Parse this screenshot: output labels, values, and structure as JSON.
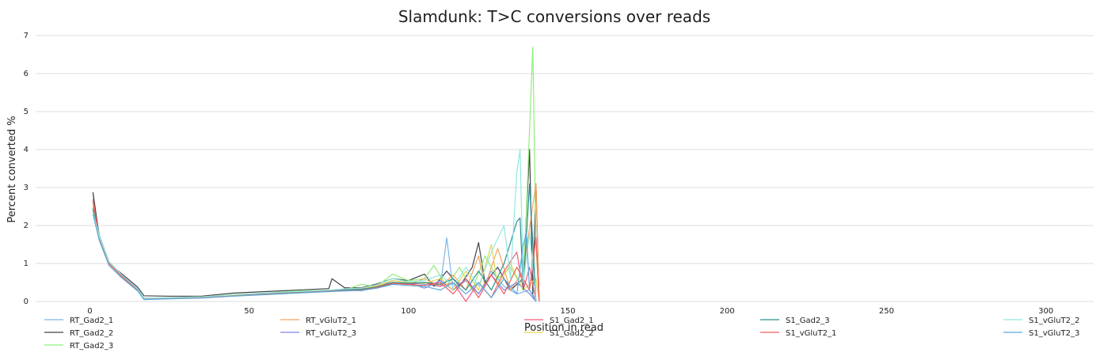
{
  "chart_data": {
    "type": "line",
    "title": "Slamdunk: T>C conversions over reads",
    "xlabel": "Position in read",
    "ylabel": "Percent converted %",
    "xlim": [
      -17,
      315
    ],
    "ylim": [
      0,
      7
    ],
    "xticks": [
      0,
      50,
      100,
      150,
      200,
      250,
      300
    ],
    "yticks": [
      0,
      1,
      2,
      3,
      4,
      5,
      6,
      7
    ],
    "grid": "horizontal",
    "legend_position": "bottom",
    "series": [
      {
        "name": "RT_Gad2_1",
        "color": "#7cb5ec",
        "values": [
          [
            1,
            2.82
          ],
          [
            3,
            1.74
          ],
          [
            6,
            1.05
          ],
          [
            10,
            0.7
          ],
          [
            15,
            0.34
          ],
          [
            17,
            0.09
          ],
          [
            25,
            0.1
          ],
          [
            35,
            0.1
          ],
          [
            45,
            0.16
          ],
          [
            55,
            0.2
          ],
          [
            65,
            0.24
          ],
          [
            75,
            0.26
          ],
          [
            80,
            0.34
          ],
          [
            85,
            0.28
          ],
          [
            90,
            0.36
          ],
          [
            95,
            0.55
          ],
          [
            100,
            0.5
          ],
          [
            105,
            0.45
          ],
          [
            110,
            0.4
          ],
          [
            112,
            1.68
          ],
          [
            114,
            0.3
          ],
          [
            118,
            0.55
          ],
          [
            122,
            0.2
          ],
          [
            126,
            0.8
          ],
          [
            130,
            0.4
          ],
          [
            134,
            0.2
          ],
          [
            138,
            0.3
          ],
          [
            140,
            0.05
          ]
        ]
      },
      {
        "name": "RT_Gad2_2",
        "color": "#434348",
        "values": [
          [
            1,
            2.88
          ],
          [
            3,
            1.66
          ],
          [
            6,
            1.0
          ],
          [
            10,
            0.73
          ],
          [
            15,
            0.38
          ],
          [
            17,
            0.15
          ],
          [
            25,
            0.14
          ],
          [
            35,
            0.14
          ],
          [
            45,
            0.22
          ],
          [
            55,
            0.26
          ],
          [
            65,
            0.3
          ],
          [
            75,
            0.34
          ],
          [
            76,
            0.6
          ],
          [
            80,
            0.36
          ],
          [
            85,
            0.36
          ],
          [
            90,
            0.46
          ],
          [
            95,
            0.6
          ],
          [
            100,
            0.55
          ],
          [
            105,
            0.72
          ],
          [
            108,
            0.4
          ],
          [
            112,
            0.8
          ],
          [
            116,
            0.4
          ],
          [
            120,
            0.9
          ],
          [
            122,
            1.55
          ],
          [
            124,
            0.5
          ],
          [
            128,
            0.9
          ],
          [
            132,
            0.3
          ],
          [
            136,
            0.6
          ],
          [
            138,
            4.0
          ],
          [
            139,
            0.2
          ],
          [
            140,
            3.1
          ],
          [
            141,
            0.0
          ]
        ]
      },
      {
        "name": "RT_Gad2_3",
        "color": "#90ed7d",
        "values": [
          [
            1,
            2.6
          ],
          [
            3,
            1.7
          ],
          [
            6,
            1.02
          ],
          [
            10,
            0.68
          ],
          [
            15,
            0.32
          ],
          [
            17,
            0.08
          ],
          [
            25,
            0.1
          ],
          [
            35,
            0.12
          ],
          [
            45,
            0.18
          ],
          [
            55,
            0.22
          ],
          [
            65,
            0.28
          ],
          [
            75,
            0.3
          ],
          [
            80,
            0.3
          ],
          [
            85,
            0.45
          ],
          [
            90,
            0.4
          ],
          [
            95,
            0.72
          ],
          [
            100,
            0.55
          ],
          [
            105,
            0.6
          ],
          [
            108,
            0.95
          ],
          [
            112,
            0.4
          ],
          [
            116,
            0.9
          ],
          [
            120,
            0.3
          ],
          [
            124,
            1.2
          ],
          [
            128,
            0.6
          ],
          [
            132,
            0.9
          ],
          [
            136,
            0.3
          ],
          [
            139,
            6.7
          ],
          [
            140,
            1.5
          ],
          [
            141,
            0.0
          ]
        ]
      },
      {
        "name": "RT_vGluT2_1",
        "color": "#f7a35c",
        "values": [
          [
            1,
            2.5
          ],
          [
            3,
            1.7
          ],
          [
            6,
            1.05
          ],
          [
            10,
            0.7
          ],
          [
            15,
            0.33
          ],
          [
            17,
            0.07
          ],
          [
            25,
            0.09
          ],
          [
            35,
            0.11
          ],
          [
            45,
            0.17
          ],
          [
            55,
            0.21
          ],
          [
            65,
            0.25
          ],
          [
            75,
            0.3
          ],
          [
            80,
            0.28
          ],
          [
            85,
            0.34
          ],
          [
            90,
            0.4
          ],
          [
            95,
            0.5
          ],
          [
            100,
            0.45
          ],
          [
            105,
            0.6
          ],
          [
            110,
            0.4
          ],
          [
            114,
            0.7
          ],
          [
            118,
            0.3
          ],
          [
            122,
            1.2
          ],
          [
            124,
            0.4
          ],
          [
            128,
            1.4
          ],
          [
            132,
            0.3
          ],
          [
            136,
            0.8
          ],
          [
            140,
            3.1
          ],
          [
            141,
            0.0
          ]
        ]
      },
      {
        "name": "RT_vGluT2_3",
        "color": "#8085e9",
        "values": [
          [
            1,
            2.4
          ],
          [
            3,
            1.65
          ],
          [
            6,
            1.0
          ],
          [
            10,
            0.66
          ],
          [
            15,
            0.3
          ],
          [
            17,
            0.06
          ],
          [
            25,
            0.08
          ],
          [
            35,
            0.1
          ],
          [
            45,
            0.15
          ],
          [
            55,
            0.2
          ],
          [
            65,
            0.24
          ],
          [
            75,
            0.28
          ],
          [
            80,
            0.3
          ],
          [
            85,
            0.3
          ],
          [
            90,
            0.35
          ],
          [
            95,
            0.45
          ],
          [
            100,
            0.5
          ],
          [
            105,
            0.35
          ],
          [
            110,
            0.55
          ],
          [
            114,
            0.3
          ],
          [
            118,
            0.6
          ],
          [
            122,
            0.2
          ],
          [
            126,
            0.7
          ],
          [
            130,
            0.3
          ],
          [
            134,
            0.5
          ],
          [
            138,
            0.2
          ],
          [
            140,
            0.0
          ]
        ]
      },
      {
        "name": "S1_Gad2_1",
        "color": "#f15c80",
        "values": [
          [
            1,
            2.7
          ],
          [
            3,
            1.62
          ],
          [
            6,
            1.0
          ],
          [
            10,
            0.67
          ],
          [
            15,
            0.31
          ],
          [
            17,
            0.07
          ],
          [
            25,
            0.09
          ],
          [
            35,
            0.11
          ],
          [
            45,
            0.16
          ],
          [
            55,
            0.2
          ],
          [
            65,
            0.24
          ],
          [
            75,
            0.28
          ],
          [
            80,
            0.32
          ],
          [
            85,
            0.3
          ],
          [
            90,
            0.38
          ],
          [
            95,
            0.5
          ],
          [
            100,
            0.45
          ],
          [
            105,
            0.5
          ],
          [
            110,
            0.4
          ],
          [
            114,
            0.5
          ],
          [
            118,
            0.0
          ],
          [
            122,
            0.5
          ],
          [
            126,
            0.1
          ],
          [
            130,
            0.8
          ],
          [
            134,
            1.3
          ],
          [
            136,
            0.3
          ],
          [
            138,
            0.9
          ],
          [
            140,
            0.0
          ]
        ]
      },
      {
        "name": "S1_Gad2_2",
        "color": "#e4d354",
        "values": [
          [
            1,
            2.55
          ],
          [
            3,
            1.68
          ],
          [
            6,
            1.02
          ],
          [
            10,
            0.69
          ],
          [
            15,
            0.32
          ],
          [
            17,
            0.08
          ],
          [
            25,
            0.1
          ],
          [
            35,
            0.12
          ],
          [
            45,
            0.17
          ],
          [
            55,
            0.21
          ],
          [
            65,
            0.26
          ],
          [
            75,
            0.29
          ],
          [
            80,
            0.3
          ],
          [
            85,
            0.33
          ],
          [
            90,
            0.42
          ],
          [
            95,
            0.55
          ],
          [
            100,
            0.5
          ],
          [
            105,
            0.48
          ],
          [
            110,
            0.6
          ],
          [
            114,
            0.3
          ],
          [
            118,
            0.8
          ],
          [
            122,
            0.3
          ],
          [
            126,
            1.5
          ],
          [
            128,
            0.4
          ],
          [
            132,
            1.0
          ],
          [
            136,
            0.3
          ],
          [
            140,
            0.6
          ],
          [
            141,
            0.0
          ]
        ]
      },
      {
        "name": "S1_Gad2_3",
        "color": "#2b908f",
        "values": [
          [
            1,
            2.45
          ],
          [
            3,
            1.66
          ],
          [
            6,
            1.0
          ],
          [
            10,
            0.67
          ],
          [
            15,
            0.31
          ],
          [
            17,
            0.07
          ],
          [
            25,
            0.09
          ],
          [
            35,
            0.11
          ],
          [
            45,
            0.16
          ],
          [
            55,
            0.2
          ],
          [
            65,
            0.25
          ],
          [
            75,
            0.28
          ],
          [
            80,
            0.31
          ],
          [
            85,
            0.32
          ],
          [
            90,
            0.38
          ],
          [
            95,
            0.5
          ],
          [
            100,
            0.48
          ],
          [
            105,
            0.5
          ],
          [
            110,
            0.45
          ],
          [
            114,
            0.6
          ],
          [
            118,
            0.3
          ],
          [
            122,
            0.8
          ],
          [
            126,
            0.3
          ],
          [
            130,
            1.0
          ],
          [
            134,
            2.1
          ],
          [
            135,
            2.2
          ],
          [
            136,
            0.3
          ],
          [
            138,
            3.1
          ],
          [
            140,
            0.0
          ]
        ]
      },
      {
        "name": "S1_vGluT2_1",
        "color": "#f45b5b",
        "values": [
          [
            1,
            2.65
          ],
          [
            3,
            1.64
          ],
          [
            6,
            1.0
          ],
          [
            10,
            0.66
          ],
          [
            15,
            0.3
          ],
          [
            17,
            0.06
          ],
          [
            25,
            0.08
          ],
          [
            35,
            0.1
          ],
          [
            45,
            0.15
          ],
          [
            55,
            0.19
          ],
          [
            65,
            0.23
          ],
          [
            75,
            0.27
          ],
          [
            80,
            0.29
          ],
          [
            85,
            0.3
          ],
          [
            90,
            0.36
          ],
          [
            95,
            0.48
          ],
          [
            100,
            0.45
          ],
          [
            105,
            0.42
          ],
          [
            110,
            0.5
          ],
          [
            114,
            0.2
          ],
          [
            118,
            0.6
          ],
          [
            122,
            0.1
          ],
          [
            126,
            0.7
          ],
          [
            130,
            0.2
          ],
          [
            134,
            0.9
          ],
          [
            138,
            0.3
          ],
          [
            140,
            1.7
          ],
          [
            141,
            0.0
          ]
        ]
      },
      {
        "name": "S1_vGluT2_2",
        "color": "#91e8e1",
        "values": [
          [
            1,
            2.35
          ],
          [
            3,
            1.7
          ],
          [
            6,
            1.04
          ],
          [
            10,
            0.7
          ],
          [
            15,
            0.33
          ],
          [
            17,
            0.08
          ],
          [
            25,
            0.1
          ],
          [
            35,
            0.12
          ],
          [
            45,
            0.17
          ],
          [
            55,
            0.22
          ],
          [
            65,
            0.26
          ],
          [
            75,
            0.3
          ],
          [
            80,
            0.33
          ],
          [
            85,
            0.35
          ],
          [
            90,
            0.44
          ],
          [
            95,
            0.6
          ],
          [
            100,
            0.52
          ],
          [
            105,
            0.55
          ],
          [
            110,
            0.7
          ],
          [
            114,
            0.4
          ],
          [
            118,
            0.9
          ],
          [
            122,
            0.4
          ],
          [
            126,
            1.3
          ],
          [
            130,
            2.0
          ],
          [
            132,
            0.6
          ],
          [
            134,
            3.4
          ],
          [
            135,
            4.0
          ],
          [
            136,
            0.5
          ],
          [
            138,
            1.8
          ],
          [
            140,
            0.0
          ]
        ]
      },
      {
        "name": "S1_vGluT2_3",
        "color": "#5aa9dc",
        "values": [
          [
            1,
            2.3
          ],
          [
            3,
            1.6
          ],
          [
            6,
            0.95
          ],
          [
            10,
            0.62
          ],
          [
            15,
            0.28
          ],
          [
            17,
            0.05
          ],
          [
            25,
            0.07
          ],
          [
            35,
            0.09
          ],
          [
            45,
            0.14
          ],
          [
            55,
            0.18
          ],
          [
            65,
            0.22
          ],
          [
            75,
            0.26
          ],
          [
            80,
            0.28
          ],
          [
            85,
            0.29
          ],
          [
            90,
            0.35
          ],
          [
            95,
            0.45
          ],
          [
            100,
            0.42
          ],
          [
            105,
            0.4
          ],
          [
            110,
            0.3
          ],
          [
            114,
            0.5
          ],
          [
            118,
            0.2
          ],
          [
            122,
            0.5
          ],
          [
            126,
            0.1
          ],
          [
            130,
            0.6
          ],
          [
            134,
            0.2
          ],
          [
            136,
            1.5
          ],
          [
            137,
            1.8
          ],
          [
            138,
            0.3
          ],
          [
            140,
            0.0
          ]
        ]
      }
    ]
  }
}
